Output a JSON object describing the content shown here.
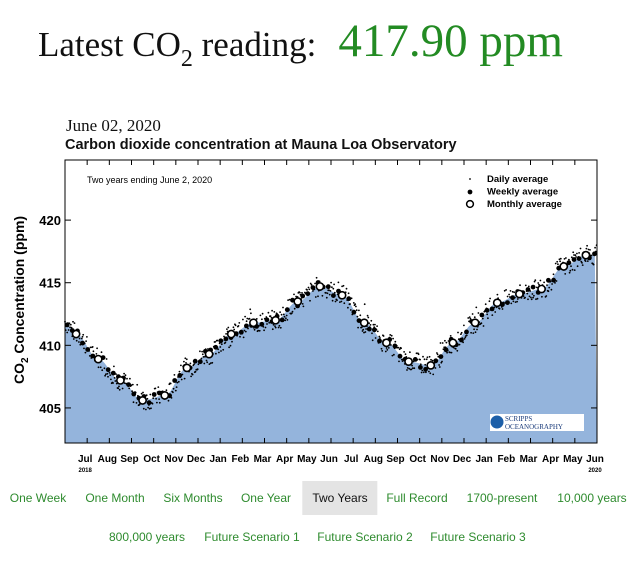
{
  "header": {
    "label_prefix": "Latest CO",
    "label_sub": "2",
    "label_suffix": " reading:",
    "value": "417.90 ppm",
    "value_color": "#238b23"
  },
  "chart_data": {
    "type": "scatter",
    "date": "June 02, 2020",
    "title": "Carbon dioxide concentration at Mauna Loa Observatory",
    "annotation": "Two years ending June 2, 2020",
    "ylabel": "CO2 Concentration (ppm)",
    "ylabel_main": "CO",
    "ylabel_sub": "2",
    "ylabel_rest": " Concentration (ppm)",
    "ylim": [
      402.2,
      424.8
    ],
    "yticks": [
      "405",
      "410",
      "415",
      "420"
    ],
    "xticks": [
      "Jul",
      "Aug",
      "Sep",
      "Oct",
      "Nov",
      "Dec",
      "Jan",
      "Feb",
      "Mar",
      "Apr",
      "May",
      "Jun",
      "Jul",
      "Aug",
      "Sep",
      "Oct",
      "Nov",
      "Dec",
      "Jan",
      "Feb",
      "Mar",
      "Apr",
      "May",
      "Jun"
    ],
    "year_start": "2018",
    "year_end": "2020",
    "legend": [
      "Daily average",
      "Weekly average",
      "Monthly average"
    ],
    "legend_position": "top-right",
    "area_color": "#94b4dc",
    "logo_text": [
      "SCRIPPS",
      "OCEANOGRAPHY"
    ],
    "monthly_x_months": [
      0.5,
      1.5,
      2.5,
      3.5,
      4.5,
      5.5,
      6.5,
      7.5,
      8.5,
      9.5,
      10.5,
      11.5,
      12.5,
      13.5,
      14.5,
      15.5,
      16.5,
      17.5,
      18.5,
      19.5,
      20.5,
      21.5,
      22.5,
      23.5
    ],
    "monthly_values": [
      410.9,
      408.9,
      407.2,
      405.6,
      406.0,
      408.2,
      409.3,
      410.9,
      411.8,
      412.0,
      413.5,
      414.7,
      414.0,
      411.8,
      410.2,
      408.7,
      408.4,
      410.2,
      411.8,
      413.4,
      414.1,
      414.5,
      416.3,
      417.2
    ]
  },
  "nav": {
    "buttons": [
      "One Week",
      "One Month",
      "Six Months",
      "One Year",
      "Two Years",
      "Full Record",
      "1700-present",
      "10,000 years"
    ],
    "buttons2": [
      "800,000 years",
      "Future Scenario 1",
      "Future Scenario 2",
      "Future Scenario 3"
    ],
    "active": "Two Years"
  }
}
